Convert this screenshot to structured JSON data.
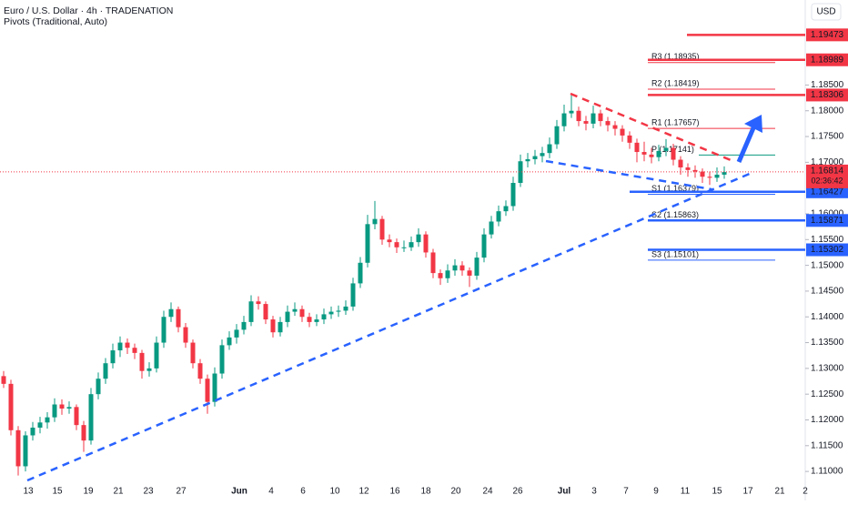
{
  "chart_data": {
    "type": "candlestick",
    "title": "Euro / U.S. Dollar · 4h · TRADENATION",
    "subtitle": "Pivots (Traditional, Auto)",
    "currency": "USD",
    "up_color": "#089981",
    "down_color": "#f23645",
    "ylim": [
      1.1079,
      1.2015
    ],
    "yticks": [
      {
        "value": 1.11,
        "label": "1.11000"
      },
      {
        "value": 1.115,
        "label": "1.11500"
      },
      {
        "value": 1.12,
        "label": "1.12000"
      },
      {
        "value": 1.125,
        "label": "1.12500"
      },
      {
        "value": 1.13,
        "label": "1.13000"
      },
      {
        "value": 1.135,
        "label": "1.13500"
      },
      {
        "value": 1.14,
        "label": "1.14000"
      },
      {
        "value": 1.145,
        "label": "1.14500"
      },
      {
        "value": 1.15,
        "label": "1.15000"
      },
      {
        "value": 1.155,
        "label": "1.15500"
      },
      {
        "value": 1.16,
        "label": "1.16000"
      },
      {
        "value": 1.17,
        "label": "1.17000"
      },
      {
        "value": 1.175,
        "label": "1.17500"
      },
      {
        "value": 1.18,
        "label": "1.18000"
      },
      {
        "value": 1.185,
        "label": "1.18500"
      }
    ],
    "grid": false,
    "x_labels": [
      "13",
      "15",
      "19",
      "21",
      "23",
      "27",
      "Jun",
      "4",
      "6",
      "10",
      "12",
      "16",
      "18",
      "20",
      "24",
      "26",
      "Jul",
      "3",
      "7",
      "9",
      "11",
      "15",
      "17",
      "21",
      "2"
    ],
    "ohlc": [
      [
        1.1285,
        1.1295,
        1.1262,
        1.127
      ],
      [
        1.127,
        1.1278,
        1.117,
        1.118
      ],
      [
        1.118,
        1.1188,
        1.1092,
        1.111
      ],
      [
        1.111,
        1.1178,
        1.11,
        1.117
      ],
      [
        1.117,
        1.1196,
        1.116,
        1.1185
      ],
      [
        1.1185,
        1.1206,
        1.1174,
        1.1195
      ],
      [
        1.1195,
        1.1215,
        1.1183,
        1.1205
      ],
      [
        1.1205,
        1.1242,
        1.1196,
        1.123
      ],
      [
        1.123,
        1.124,
        1.121,
        1.1222
      ],
      [
        1.1222,
        1.1236,
        1.1212,
        1.1225
      ],
      [
        1.1225,
        1.123,
        1.118,
        1.119
      ],
      [
        1.119,
        1.1198,
        1.1138,
        1.116
      ],
      [
        1.116,
        1.1262,
        1.1152,
        1.125
      ],
      [
        1.125,
        1.1292,
        1.124,
        1.128
      ],
      [
        1.128,
        1.132,
        1.127,
        1.131
      ],
      [
        1.131,
        1.1348,
        1.13,
        1.1335
      ],
      [
        1.1335,
        1.1362,
        1.1322,
        1.135
      ],
      [
        1.135,
        1.1358,
        1.1328,
        1.134
      ],
      [
        1.134,
        1.1348,
        1.1318,
        1.133
      ],
      [
        1.133,
        1.1336,
        1.128,
        1.1295
      ],
      [
        1.1295,
        1.1312,
        1.1284,
        1.13
      ],
      [
        1.13,
        1.1362,
        1.1292,
        1.135
      ],
      [
        1.135,
        1.1412,
        1.134,
        1.14
      ],
      [
        1.14,
        1.1428,
        1.139,
        1.1415
      ],
      [
        1.1415,
        1.142,
        1.137,
        1.138
      ],
      [
        1.138,
        1.1388,
        1.134,
        1.135
      ],
      [
        1.135,
        1.1356,
        1.13,
        1.131
      ],
      [
        1.131,
        1.1318,
        1.127,
        1.128
      ],
      [
        1.128,
        1.1288,
        1.1212,
        1.1235
      ],
      [
        1.1235,
        1.1302,
        1.1226,
        1.129
      ],
      [
        1.129,
        1.1356,
        1.128,
        1.1345
      ],
      [
        1.1345,
        1.1372,
        1.1336,
        1.136
      ],
      [
        1.136,
        1.1386,
        1.1348,
        1.1375
      ],
      [
        1.1375,
        1.1402,
        1.1366,
        1.139
      ],
      [
        1.139,
        1.1442,
        1.1382,
        1.143
      ],
      [
        1.143,
        1.144,
        1.1414,
        1.1425
      ],
      [
        1.1425,
        1.143,
        1.1386,
        1.1395
      ],
      [
        1.1395,
        1.1402,
        1.136,
        1.137
      ],
      [
        1.137,
        1.14,
        1.1362,
        1.139
      ],
      [
        1.139,
        1.1422,
        1.138,
        1.141
      ],
      [
        1.141,
        1.1428,
        1.1402,
        1.1415
      ],
      [
        1.1415,
        1.1422,
        1.139,
        1.14
      ],
      [
        1.14,
        1.1408,
        1.138,
        1.139
      ],
      [
        1.139,
        1.1405,
        1.1382,
        1.1395
      ],
      [
        1.1395,
        1.1416,
        1.1386,
        1.1405
      ],
      [
        1.1405,
        1.142,
        1.1396,
        1.141
      ],
      [
        1.141,
        1.1422,
        1.14,
        1.1412
      ],
      [
        1.1412,
        1.1432,
        1.1404,
        1.142
      ],
      [
        1.142,
        1.1476,
        1.1412,
        1.1465
      ],
      [
        1.1465,
        1.1516,
        1.1456,
        1.1505
      ],
      [
        1.1505,
        1.1598,
        1.1496,
        1.158
      ],
      [
        1.158,
        1.1625,
        1.157,
        1.159
      ],
      [
        1.159,
        1.1596,
        1.154,
        1.155
      ],
      [
        1.155,
        1.156,
        1.1535,
        1.1545
      ],
      [
        1.1545,
        1.1552,
        1.1524,
        1.1535
      ],
      [
        1.1535,
        1.1548,
        1.1526,
        1.1535
      ],
      [
        1.1535,
        1.1556,
        1.1528,
        1.1545
      ],
      [
        1.1545,
        1.1572,
        1.1536,
        1.156
      ],
      [
        1.156,
        1.1566,
        1.1515,
        1.1525
      ],
      [
        1.1525,
        1.1532,
        1.1475,
        1.1485
      ],
      [
        1.1485,
        1.1492,
        1.1462,
        1.1475
      ],
      [
        1.1475,
        1.1502,
        1.1466,
        1.149
      ],
      [
        1.149,
        1.1512,
        1.148,
        1.15
      ],
      [
        1.15,
        1.1508,
        1.148,
        1.149
      ],
      [
        1.149,
        1.1496,
        1.1458,
        1.148
      ],
      [
        1.148,
        1.1526,
        1.1472,
        1.1515
      ],
      [
        1.1515,
        1.1572,
        1.1506,
        1.156
      ],
      [
        1.156,
        1.1596,
        1.1552,
        1.1585
      ],
      [
        1.1585,
        1.1616,
        1.1576,
        1.1605
      ],
      [
        1.1605,
        1.1626,
        1.1596,
        1.1615
      ],
      [
        1.1615,
        1.1672,
        1.1606,
        1.166
      ],
      [
        1.166,
        1.1715,
        1.1652,
        1.1702
      ],
      [
        1.1702,
        1.1718,
        1.169,
        1.1706
      ],
      [
        1.1706,
        1.1724,
        1.1696,
        1.1712
      ],
      [
        1.1712,
        1.173,
        1.17,
        1.1718
      ],
      [
        1.1718,
        1.1748,
        1.1708,
        1.1735
      ],
      [
        1.1735,
        1.1782,
        1.1726,
        1.177
      ],
      [
        1.177,
        1.1812,
        1.176,
        1.1795
      ],
      [
        1.1795,
        1.183,
        1.1786,
        1.18
      ],
      [
        1.18,
        1.1808,
        1.177,
        1.178
      ],
      [
        1.178,
        1.179,
        1.1762,
        1.1775
      ],
      [
        1.1775,
        1.181,
        1.1766,
        1.1795
      ],
      [
        1.1795,
        1.1802,
        1.177,
        1.178
      ],
      [
        1.178,
        1.1788,
        1.176,
        1.1772
      ],
      [
        1.1772,
        1.178,
        1.1752,
        1.1765
      ],
      [
        1.1765,
        1.1772,
        1.174,
        1.1752
      ],
      [
        1.1752,
        1.176,
        1.1726,
        1.1738
      ],
      [
        1.1738,
        1.1746,
        1.17,
        1.172
      ],
      [
        1.172,
        1.174,
        1.1702,
        1.1715
      ],
      [
        1.1715,
        1.1728,
        1.1698,
        1.171
      ],
      [
        1.171,
        1.1734,
        1.1702,
        1.1722
      ],
      [
        1.1722,
        1.1745,
        1.1712,
        1.1728
      ],
      [
        1.1728,
        1.1736,
        1.1694,
        1.1705
      ],
      [
        1.1705,
        1.1712,
        1.1676,
        1.169
      ],
      [
        1.169,
        1.1698,
        1.1672,
        1.1685
      ],
      [
        1.1685,
        1.1694,
        1.167,
        1.1682
      ],
      [
        1.1682,
        1.1688,
        1.166,
        1.1672
      ],
      [
        1.1672,
        1.1682,
        1.1656,
        1.167
      ],
      [
        1.167,
        1.169,
        1.1662,
        1.1676
      ],
      [
        1.1676,
        1.1692,
        1.1668,
        1.1681
      ]
    ],
    "pivots": [
      {
        "label": "R3 (1.18935)",
        "value": 1.18935,
        "color": "#f23645"
      },
      {
        "label": "R2 (1.18419)",
        "value": 1.18419,
        "color": "#f23645"
      },
      {
        "label": "R1 (1.17657)",
        "value": 1.17657,
        "color": "#f23645"
      },
      {
        "label": "P (1.17141)",
        "value": 1.17141,
        "color": "#089981"
      },
      {
        "label": "S1 (1.16379)",
        "value": 1.16379,
        "color": "#2962ff"
      },
      {
        "label": "S2 (1.15863)",
        "value": 1.15863,
        "color": "#2962ff"
      },
      {
        "label": "S3 (1.15101)",
        "value": 1.15101,
        "color": "#2962ff"
      }
    ],
    "levels": [
      {
        "value": 1.19473,
        "color": "#f23645"
      },
      {
        "value": 1.18989,
        "color": "#f23645"
      },
      {
        "value": 1.18306,
        "color": "#f23645"
      },
      {
        "value": 1.16427,
        "color": "#2962ff"
      },
      {
        "value": 1.15871,
        "color": "#2962ff"
      },
      {
        "value": 1.15302,
        "color": "#2962ff"
      }
    ],
    "last_price": {
      "value": 1.16814,
      "countdown": "02:36:42",
      "color": "#f23645"
    }
  }
}
